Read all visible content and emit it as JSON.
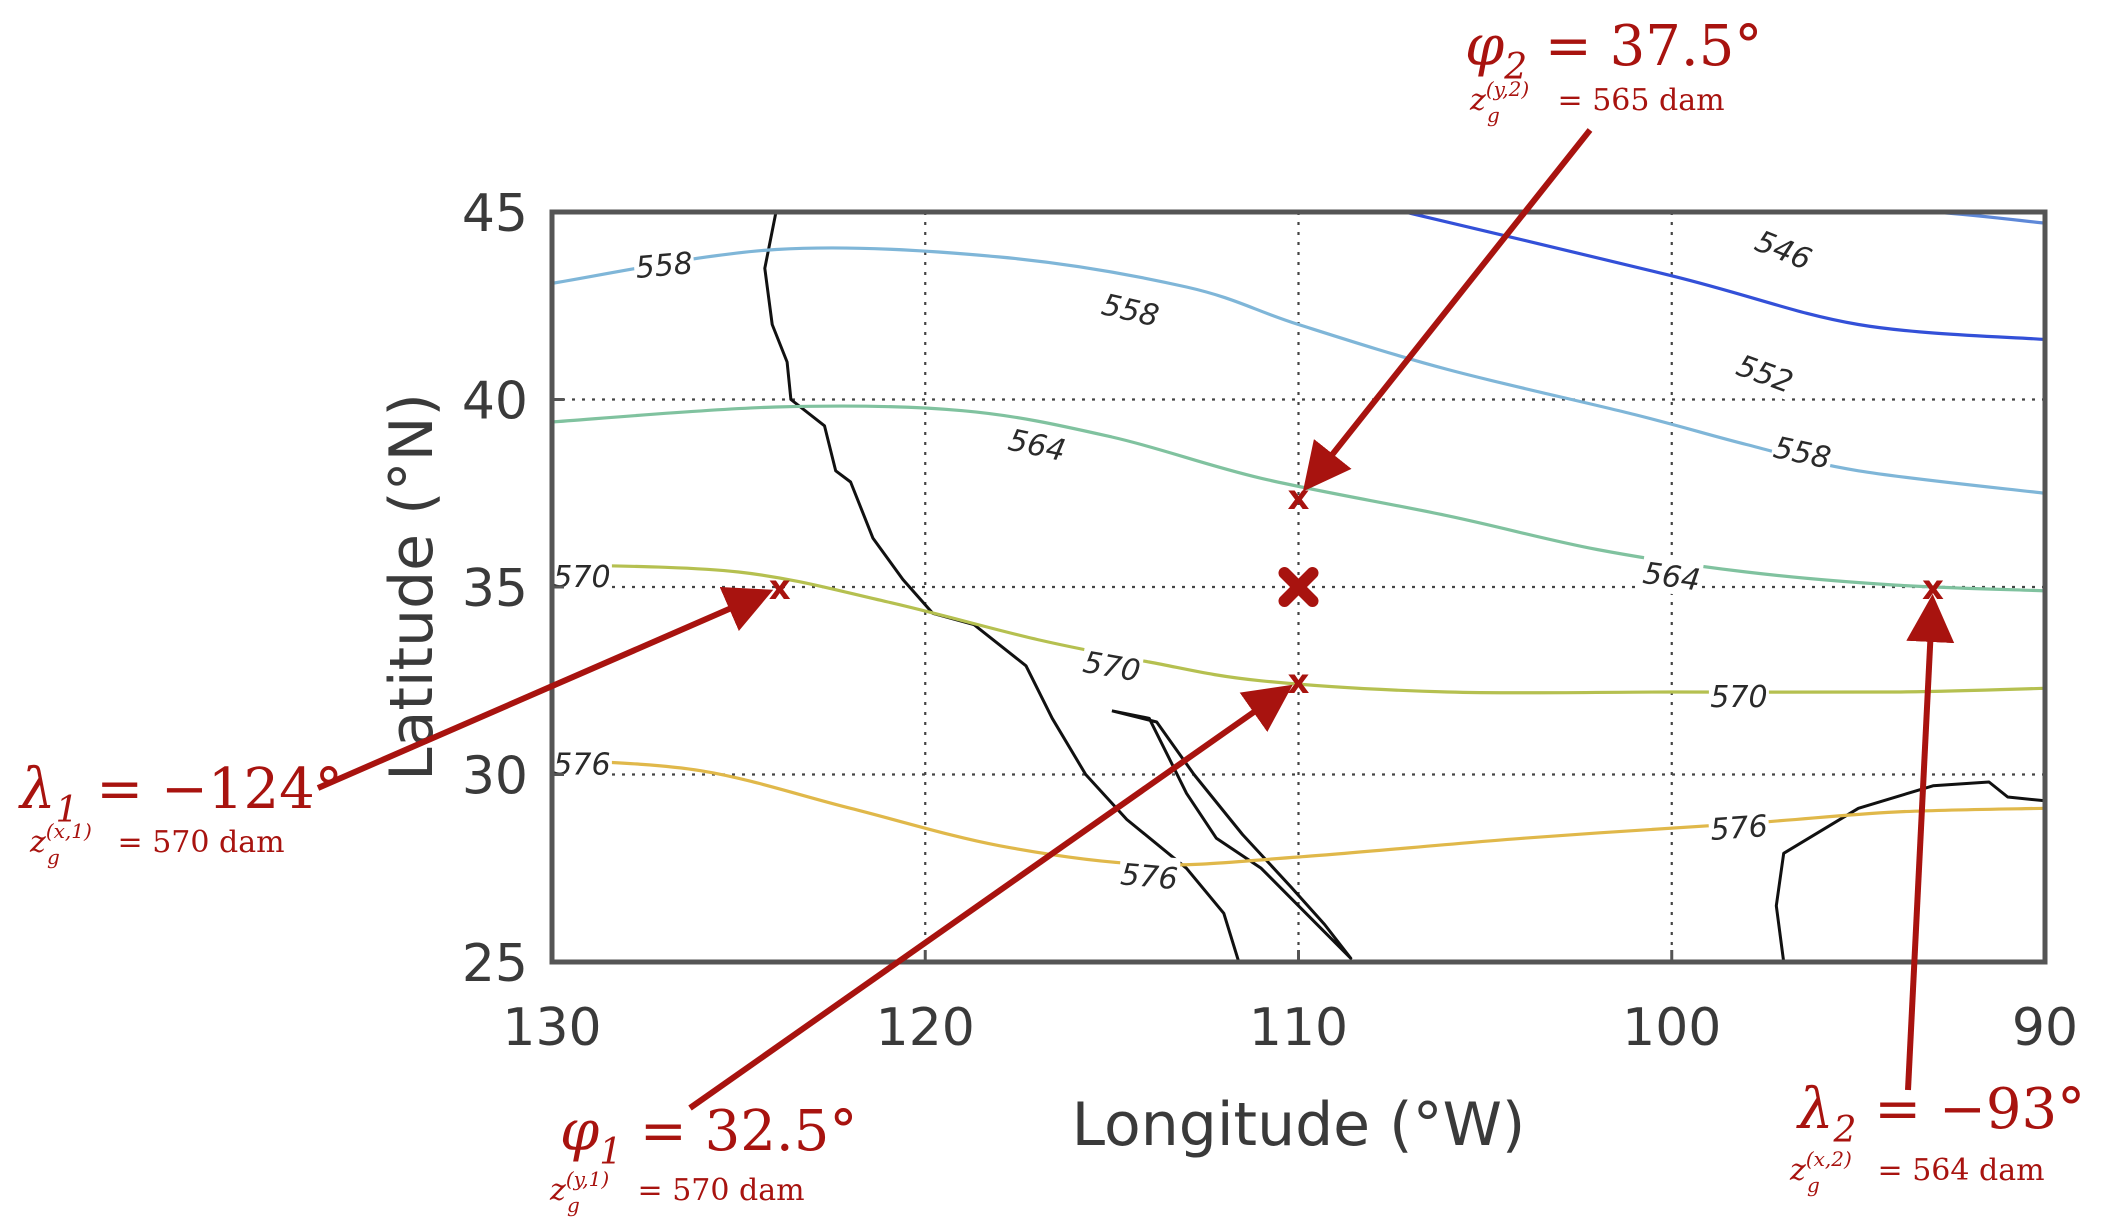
{
  "chart_data": {
    "type": "contour",
    "xlabel": "Longitude (°W)",
    "ylabel": "Latitude (°N)",
    "xlim": [
      130,
      90
    ],
    "ylim": [
      25,
      45
    ],
    "xticks": [
      "130",
      "120",
      "110",
      "100",
      "90"
    ],
    "yticks": [
      "25",
      "30",
      "35",
      "40",
      "45"
    ],
    "grid": true,
    "contour_levels": [
      {
        "level": "546",
        "color": "#3350d8",
        "points": [
          [
            108,
            45.2
          ],
          [
            100,
            43.3
          ],
          [
            95,
            42.0
          ],
          [
            90,
            41.6
          ]
        ]
      },
      {
        "level": "552",
        "color": "#5e88d8",
        "points": [
          [
            97.5,
            45.2
          ],
          [
            93,
            45.0
          ],
          [
            90,
            44.7
          ]
        ]
      },
      {
        "level": "558",
        "color": "#7fb6d8",
        "points": [
          [
            130,
            43.1
          ],
          [
            124,
            44.0
          ],
          [
            118,
            43.8
          ],
          [
            113,
            43.0
          ],
          [
            110,
            42.0
          ],
          [
            106,
            40.8
          ],
          [
            101,
            39.6
          ],
          [
            98,
            38.8
          ],
          [
            95,
            38.1
          ],
          [
            90,
            37.5
          ]
        ]
      },
      {
        "level": "564",
        "color": "#80c29f",
        "points": [
          [
            130,
            39.4
          ],
          [
            124,
            39.8
          ],
          [
            119,
            39.7
          ],
          [
            115,
            39.0
          ],
          [
            111,
            37.9
          ],
          [
            106,
            36.9
          ],
          [
            102,
            36.0
          ],
          [
            98,
            35.4
          ],
          [
            94,
            35.05
          ],
          [
            90,
            34.9
          ]
        ]
      },
      {
        "level": "570",
        "color": "#b5c050",
        "points": [
          [
            130,
            35.6
          ],
          [
            125,
            35.4
          ],
          [
            121,
            34.6
          ],
          [
            117,
            33.6
          ],
          [
            114,
            33.0
          ],
          [
            111,
            32.5
          ],
          [
            106,
            32.2
          ],
          [
            100,
            32.2
          ],
          [
            94,
            32.2
          ],
          [
            90,
            32.3
          ]
        ]
      },
      {
        "level": "576",
        "color": "#e0b84a",
        "points": [
          [
            130,
            30.4
          ],
          [
            126,
            30.1
          ],
          [
            122,
            29.1
          ],
          [
            118,
            28.1
          ],
          [
            114,
            27.6
          ],
          [
            110,
            27.8
          ],
          [
            104,
            28.3
          ],
          [
            98,
            28.7
          ],
          [
            94,
            29.0
          ],
          [
            90,
            29.1
          ]
        ]
      }
    ],
    "contour_labels": [
      {
        "text": "558",
        "x": 127,
        "y": 43.6,
        "angle": -5
      },
      {
        "text": "558",
        "x": 114.5,
        "y": 42.4,
        "angle": 13
      },
      {
        "text": "546",
        "x": 97,
        "y": 44.0,
        "angle": 22
      },
      {
        "text": "552",
        "x": 97.5,
        "y": 40.7,
        "angle": 20
      },
      {
        "text": "558",
        "x": 96.5,
        "y": 38.6,
        "angle": 12
      },
      {
        "text": "564",
        "x": 117,
        "y": 38.8,
        "angle": 12
      },
      {
        "text": "564",
        "x": 100,
        "y": 35.3,
        "angle": 8
      },
      {
        "text": "570",
        "x": 129.2,
        "y": 35.3,
        "angle": 0
      },
      {
        "text": "570",
        "x": 115,
        "y": 32.9,
        "angle": 10
      },
      {
        "text": "570",
        "x": 98.2,
        "y": 32.1,
        "angle": 0
      },
      {
        "text": "576",
        "x": 129.2,
        "y": 30.3,
        "angle": 0
      },
      {
        "text": "576",
        "x": 114,
        "y": 27.3,
        "angle": 5
      },
      {
        "text": "576",
        "x": 98.2,
        "y": 28.6,
        "angle": -4
      }
    ],
    "coastline": [
      [
        [
          124.0,
          45
        ],
        [
          124.3,
          43.5
        ],
        [
          124.1,
          42.0
        ],
        [
          123.7,
          41.0
        ],
        [
          123.6,
          40.0
        ],
        [
          122.7,
          39.3
        ],
        [
          122.4,
          38.1
        ],
        [
          122.0,
          37.8
        ],
        [
          121.4,
          36.3
        ],
        [
          120.6,
          35.2
        ],
        [
          119.8,
          34.3
        ],
        [
          118.7,
          34.0
        ],
        [
          117.3,
          32.9
        ],
        [
          116.6,
          31.5
        ],
        [
          115.7,
          30.0
        ],
        [
          114.6,
          28.8
        ],
        [
          113.0,
          27.5
        ],
        [
          112.0,
          26.3
        ],
        [
          111.6,
          25.0
        ]
      ],
      [
        [
          115.0,
          31.7
        ],
        [
          114.0,
          31.5
        ],
        [
          113.5,
          30.5
        ],
        [
          113.0,
          29.5
        ],
        [
          112.2,
          28.3
        ],
        [
          111.0,
          27.5
        ],
        [
          110.0,
          26.5
        ],
        [
          108.6,
          25.1
        ],
        [
          109.3,
          26.0
        ],
        [
          110.2,
          27.0
        ],
        [
          111.5,
          28.4
        ],
        [
          112.8,
          30.0
        ],
        [
          113.8,
          31.4
        ],
        [
          115.0,
          31.7
        ]
      ],
      [
        [
          97.0,
          25.0
        ],
        [
          97.2,
          26.5
        ],
        [
          97.0,
          27.9
        ],
        [
          96.0,
          28.5
        ],
        [
          95.0,
          29.1
        ],
        [
          93.0,
          29.7
        ],
        [
          91.5,
          29.8
        ],
        [
          91.0,
          29.4
        ],
        [
          90.0,
          29.3
        ]
      ]
    ],
    "markers": [
      {
        "x": 110,
        "y": 35,
        "kind": "center"
      },
      {
        "x": 123.9,
        "y": 35,
        "kind": "point"
      },
      {
        "x": 110,
        "y": 37.4,
        "kind": "point"
      },
      {
        "x": 110,
        "y": 32.5,
        "kind": "point"
      },
      {
        "x": 93,
        "y": 35,
        "kind": "point"
      }
    ],
    "marker_symbol": "x",
    "annotations": [
      {
        "symbol": "λ",
        "sub": "1",
        "value": "−124°",
        "sub_label": "z",
        "sub_sub": "g",
        "sub_sup": "(x,1)",
        "sub_value": "570 dam",
        "target": [
          123.9,
          35
        ]
      },
      {
        "symbol": "φ",
        "sub": "2",
        "value": "37.5°",
        "sub_label": "z",
        "sub_sub": "g",
        "sub_sup": "(y,2)",
        "sub_value": "565 dam",
        "target": [
          110,
          37.4
        ]
      },
      {
        "symbol": "φ",
        "sub": "1",
        "value": "32.5°",
        "sub_label": "z",
        "sub_sub": "g",
        "sub_sup": "(y,1)",
        "sub_value": "570 dam",
        "target": [
          110,
          32.5
        ]
      },
      {
        "symbol": "λ",
        "sub": "2",
        "value": "−93°",
        "sub_label": "z",
        "sub_sub": "g",
        "sub_sup": "(x,2)",
        "sub_value": "564 dam",
        "target": [
          93,
          35
        ]
      }
    ],
    "colors": {
      "annotation": "#a8130f",
      "axis": "#555555",
      "text": "#3a3a3a"
    }
  }
}
